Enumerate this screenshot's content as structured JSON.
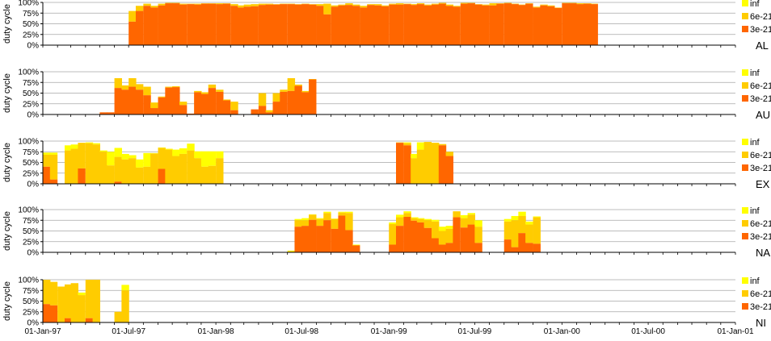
{
  "chart_data": {
    "type": "bar",
    "stacked": true,
    "ylabel": "duty cycle",
    "yticks": [
      "0%",
      "25%",
      "50%",
      "75%",
      "100%"
    ],
    "ylim": [
      0,
      100
    ],
    "x_start": "01-Jan-97",
    "x_end": "01-Jan-01",
    "xticks": [
      "01-Jan-97",
      "01-Jul-97",
      "01-Jan-98",
      "01-Jul-98",
      "01-Jan-99",
      "01-Jul-99",
      "01-Jan-00",
      "01-Jul-00",
      "01-Jan-01"
    ],
    "colors": {
      "inf": "#ffff00",
      "6e-21": "#ffcc00",
      "3e-21": "#ff6600"
    },
    "legend_labels": [
      "inf",
      "6e-21",
      "3e-21"
    ],
    "bar_width_days": 15,
    "panels": [
      {
        "name": "AL",
        "bars": [
          [
            "1997-07-01",
            55,
            80,
            80
          ],
          [
            "1997-07-16",
            80,
            92,
            92
          ],
          [
            "1997-08-01",
            92,
            97,
            97
          ],
          [
            "1997-08-16",
            88,
            92,
            92
          ],
          [
            "1997-09-01",
            93,
            97,
            97
          ],
          [
            "1997-09-16",
            98,
            99,
            99
          ],
          [
            "1997-10-01",
            98,
            99,
            99
          ],
          [
            "1997-10-16",
            95,
            97,
            97
          ],
          [
            "1997-11-01",
            96,
            97,
            97
          ],
          [
            "1997-11-16",
            95,
            97,
            97
          ],
          [
            "1997-12-01",
            97,
            98,
            98
          ],
          [
            "1997-12-16",
            97,
            98,
            98
          ],
          [
            "1998-01-01",
            96,
            98,
            98
          ],
          [
            "1998-01-16",
            97,
            98,
            98
          ],
          [
            "1998-02-01",
            92,
            96,
            96
          ],
          [
            "1998-02-16",
            88,
            93,
            93
          ],
          [
            "1998-03-01",
            90,
            95,
            95
          ],
          [
            "1998-03-16",
            91,
            96,
            96
          ],
          [
            "1998-04-01",
            94,
            97,
            97
          ],
          [
            "1998-04-16",
            95,
            97,
            97
          ],
          [
            "1998-05-01",
            95,
            96,
            96
          ],
          [
            "1998-05-16",
            96,
            97,
            97
          ],
          [
            "1998-06-01",
            96,
            97,
            97
          ],
          [
            "1998-06-16",
            95,
            96,
            96
          ],
          [
            "1998-07-01",
            96,
            97,
            97
          ],
          [
            "1998-07-16",
            95,
            96,
            96
          ],
          [
            "1998-08-01",
            92,
            96,
            96
          ],
          [
            "1998-08-16",
            72,
            97,
            97
          ],
          [
            "1998-09-01",
            90,
            93,
            93
          ],
          [
            "1998-09-16",
            93,
            95,
            95
          ],
          [
            "1998-10-01",
            94,
            98,
            98
          ],
          [
            "1998-10-16",
            92,
            95,
            95
          ],
          [
            "1998-11-01",
            88,
            92,
            92
          ],
          [
            "1998-11-16",
            94,
            96,
            96
          ],
          [
            "1998-12-01",
            93,
            96,
            96
          ],
          [
            "1998-12-16",
            91,
            93,
            93
          ],
          [
            "1999-01-01",
            95,
            97,
            97
          ],
          [
            "1999-01-16",
            95,
            98,
            98
          ],
          [
            "1999-02-01",
            96,
            97,
            97
          ],
          [
            "1999-02-16",
            94,
            96,
            96
          ],
          [
            "1999-03-01",
            96,
            98,
            98
          ],
          [
            "1999-03-16",
            93,
            95,
            95
          ],
          [
            "1999-04-01",
            95,
            97,
            97
          ],
          [
            "1999-04-16",
            97,
            99,
            99
          ],
          [
            "1999-05-01",
            92,
            95,
            95
          ],
          [
            "1999-05-16",
            90,
            92,
            92
          ],
          [
            "1999-06-01",
            97,
            99,
            99
          ],
          [
            "1999-06-16",
            98,
            99,
            99
          ],
          [
            "1999-07-01",
            95,
            96,
            96
          ],
          [
            "1999-07-16",
            93,
            95,
            95
          ],
          [
            "1999-08-01",
            93,
            98,
            98
          ],
          [
            "1999-08-16",
            97,
            98,
            98
          ],
          [
            "1999-09-01",
            98,
            99,
            99
          ],
          [
            "1999-09-16",
            96,
            97,
            97
          ],
          [
            "1999-10-01",
            94,
            95,
            95
          ],
          [
            "1999-10-16",
            97,
            98,
            98
          ],
          [
            "1999-11-01",
            88,
            90,
            90
          ],
          [
            "1999-11-16",
            93,
            95,
            95
          ],
          [
            "1999-12-01",
            91,
            93,
            93
          ],
          [
            "1999-12-16",
            87,
            88,
            88
          ],
          [
            "2000-01-01",
            98,
            99,
            99
          ],
          [
            "2000-01-16",
            98,
            99,
            99
          ],
          [
            "2000-02-01",
            96,
            98,
            98
          ],
          [
            "2000-02-16",
            97,
            98,
            98
          ],
          [
            "2000-03-01",
            96,
            97,
            97
          ]
        ]
      },
      {
        "name": "AU",
        "bars": [
          [
            "1997-05-01",
            5,
            5,
            5
          ],
          [
            "1997-05-16",
            5,
            5,
            5
          ],
          [
            "1997-06-01",
            62,
            85,
            85
          ],
          [
            "1997-06-16",
            58,
            68,
            68
          ],
          [
            "1997-07-01",
            65,
            85,
            85
          ],
          [
            "1997-07-16",
            58,
            71,
            71
          ],
          [
            "1997-08-01",
            45,
            65,
            65
          ],
          [
            "1997-08-16",
            15,
            28,
            28
          ],
          [
            "1997-09-01",
            40,
            42,
            42
          ],
          [
            "1997-09-16",
            63,
            65,
            65
          ],
          [
            "1997-10-01",
            64,
            66,
            66
          ],
          [
            "1997-10-16",
            22,
            30,
            30
          ],
          [
            "1997-11-01",
            2,
            2,
            2
          ],
          [
            "1997-11-16",
            52,
            55,
            55
          ],
          [
            "1997-12-01",
            48,
            52,
            52
          ],
          [
            "1997-12-16",
            62,
            70,
            70
          ],
          [
            "1998-01-01",
            53,
            58,
            58
          ],
          [
            "1998-01-16",
            33,
            35,
            35
          ],
          [
            "1998-02-01",
            10,
            30,
            30
          ],
          [
            "1998-03-16",
            12,
            12,
            12
          ],
          [
            "1998-04-01",
            20,
            50,
            50
          ],
          [
            "1998-04-16",
            5,
            10,
            10
          ],
          [
            "1998-05-01",
            30,
            50,
            50
          ],
          [
            "1998-05-16",
            53,
            58,
            58
          ],
          [
            "1998-06-01",
            55,
            85,
            85
          ],
          [
            "1998-06-16",
            67,
            70,
            70
          ],
          [
            "1998-07-01",
            52,
            55,
            55
          ],
          [
            "1998-07-16",
            82,
            83,
            83
          ]
        ]
      },
      {
        "name": "EX",
        "bars": [
          [
            "1997-01-01",
            40,
            68,
            73
          ],
          [
            "1997-01-16",
            10,
            68,
            73
          ],
          [
            "1997-02-16",
            0,
            78,
            90
          ],
          [
            "1997-03-01",
            0,
            82,
            92
          ],
          [
            "1997-03-16",
            36,
            96,
            96
          ],
          [
            "1997-04-01",
            0,
            95,
            97
          ],
          [
            "1997-04-16",
            0,
            92,
            95
          ],
          [
            "1997-05-01",
            0,
            75,
            78
          ],
          [
            "1997-05-16",
            0,
            43,
            75
          ],
          [
            "1997-06-01",
            5,
            63,
            84
          ],
          [
            "1997-06-16",
            0,
            57,
            70
          ],
          [
            "1997-07-01",
            0,
            60,
            67
          ],
          [
            "1997-07-16",
            0,
            38,
            57
          ],
          [
            "1997-08-01",
            0,
            40,
            72
          ],
          [
            "1997-08-16",
            0,
            71,
            72
          ],
          [
            "1997-09-01",
            35,
            84,
            85
          ],
          [
            "1997-09-16",
            0,
            80,
            82
          ],
          [
            "1997-10-01",
            0,
            65,
            80
          ],
          [
            "1997-10-16",
            0,
            70,
            83
          ],
          [
            "1997-11-01",
            0,
            78,
            94
          ],
          [
            "1997-11-16",
            0,
            60,
            76
          ],
          [
            "1997-12-01",
            0,
            40,
            76
          ],
          [
            "1997-12-16",
            0,
            42,
            76
          ],
          [
            "1998-01-01",
            0,
            60,
            76
          ],
          [
            "1999-01-16",
            96,
            97,
            97
          ],
          [
            "1999-02-01",
            90,
            95,
            97
          ],
          [
            "1999-02-16",
            0,
            60,
            70
          ],
          [
            "1999-03-01",
            0,
            80,
            97
          ],
          [
            "1999-03-16",
            0,
            98,
            98
          ],
          [
            "1999-04-01",
            0,
            96,
            96
          ],
          [
            "1999-04-16",
            90,
            93,
            93
          ],
          [
            "1999-05-01",
            65,
            75,
            75
          ]
        ]
      },
      {
        "name": "NA",
        "bars": [
          [
            "1998-06-01",
            0,
            2,
            4
          ],
          [
            "1998-06-16",
            60,
            75,
            78
          ],
          [
            "1998-07-01",
            62,
            75,
            80
          ],
          [
            "1998-07-16",
            76,
            88,
            89
          ],
          [
            "1998-08-01",
            62,
            78,
            80
          ],
          [
            "1998-08-16",
            75,
            92,
            95
          ],
          [
            "1998-09-01",
            55,
            78,
            79
          ],
          [
            "1998-09-16",
            86,
            93,
            95
          ],
          [
            "1998-10-01",
            52,
            92,
            95
          ],
          [
            "1998-10-16",
            16,
            17,
            18
          ],
          [
            "1999-01-01",
            18,
            66,
            70
          ],
          [
            "1999-01-16",
            62,
            82,
            88
          ],
          [
            "1999-02-01",
            83,
            92,
            96
          ],
          [
            "1999-02-16",
            74,
            80,
            82
          ],
          [
            "1999-03-01",
            70,
            78,
            80
          ],
          [
            "1999-03-16",
            57,
            75,
            78
          ],
          [
            "1999-04-01",
            33,
            72,
            76
          ],
          [
            "1999-04-16",
            18,
            50,
            60
          ],
          [
            "1999-05-01",
            22,
            55,
            62
          ],
          [
            "1999-05-16",
            82,
            96,
            96
          ],
          [
            "1999-06-01",
            58,
            80,
            87
          ],
          [
            "1999-06-16",
            65,
            88,
            92
          ],
          [
            "1999-07-01",
            22,
            60,
            75
          ],
          [
            "1999-09-01",
            30,
            72,
            78
          ],
          [
            "1999-09-16",
            12,
            75,
            85
          ],
          [
            "1999-10-01",
            45,
            85,
            95
          ],
          [
            "1999-10-16",
            22,
            65,
            72
          ],
          [
            "1999-11-01",
            20,
            82,
            84
          ]
        ]
      },
      {
        "name": "NI",
        "bars": [
          [
            "1997-01-01",
            43,
            100,
            100
          ],
          [
            "1997-01-16",
            40,
            95,
            95
          ],
          [
            "1997-02-01",
            0,
            84,
            84
          ],
          [
            "1997-02-16",
            10,
            89,
            89
          ],
          [
            "1997-03-01",
            0,
            92,
            92
          ],
          [
            "1997-03-16",
            0,
            64,
            70
          ],
          [
            "1997-04-01",
            10,
            100,
            100
          ],
          [
            "1997-04-16",
            0,
            100,
            100
          ],
          [
            "1997-06-01",
            0,
            25,
            25
          ],
          [
            "1997-06-16",
            0,
            75,
            88
          ]
        ]
      }
    ]
  }
}
